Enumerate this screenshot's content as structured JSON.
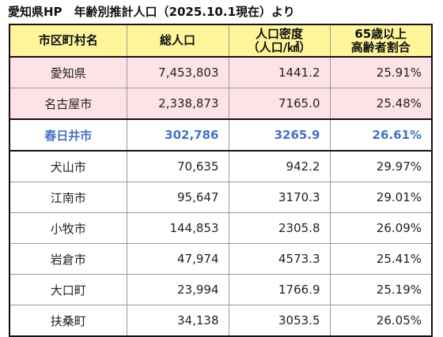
{
  "page": {
    "title": "愛知県HP　年齢別推計人口（2025.10.1現在）より"
  },
  "table": {
    "headers": [
      {
        "line1": "市区町村名",
        "line2": ""
      },
      {
        "line1": "総人口",
        "line2": ""
      },
      {
        "line1": "人口密度",
        "line2": "（人口/㎢）"
      },
      {
        "line1": "65歳以上",
        "line2": "高齢者割合"
      }
    ],
    "rows": [
      {
        "name": "愛知県",
        "population": "7,453,803",
        "density": "1441.2",
        "elderly": "25.91%",
        "style": "pref"
      },
      {
        "name": "名古屋市",
        "population": "2,338,873",
        "density": "7165.0",
        "elderly": "25.48%",
        "style": "pref"
      },
      {
        "name": "春日井市",
        "population": "302,786",
        "density": "3265.9",
        "elderly": "26.61%",
        "style": "highlight"
      },
      {
        "name": "犬山市",
        "population": "70,635",
        "density": "942.2",
        "elderly": "29.97%",
        "style": "normal"
      },
      {
        "name": "江南市",
        "population": "95,647",
        "density": "3170.3",
        "elderly": "29.01%",
        "style": "normal"
      },
      {
        "name": "小牧市",
        "population": "144,853",
        "density": "2305.8",
        "elderly": "26.09%",
        "style": "normal"
      },
      {
        "name": "岩倉市",
        "population": "47,974",
        "density": "4573.3",
        "elderly": "25.41%",
        "style": "normal"
      },
      {
        "name": "大口町",
        "population": "23,994",
        "density": "1766.9",
        "elderly": "25.19%",
        "style": "normal"
      },
      {
        "name": "扶桑町",
        "population": "34,138",
        "density": "3053.5",
        "elderly": "26.05%",
        "style": "normal"
      }
    ]
  },
  "colors": {
    "header_bg": "#fff59a",
    "pref_row_bg": "#fde3e6",
    "highlight_text": "#4472c4"
  }
}
